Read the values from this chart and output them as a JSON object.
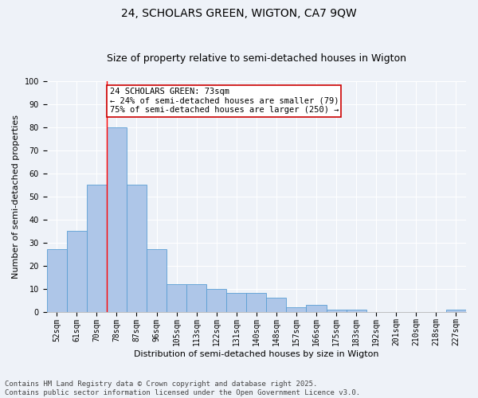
{
  "title_line1": "24, SCHOLARS GREEN, WIGTON, CA7 9QW",
  "title_line2": "Size of property relative to semi-detached houses in Wigton",
  "xlabel": "Distribution of semi-detached houses by size in Wigton",
  "ylabel": "Number of semi-detached properties",
  "footnote": "Contains HM Land Registry data © Crown copyright and database right 2025.\nContains public sector information licensed under the Open Government Licence v3.0.",
  "bin_labels": [
    "52sqm",
    "61sqm",
    "70sqm",
    "78sqm",
    "87sqm",
    "96sqm",
    "105sqm",
    "113sqm",
    "122sqm",
    "131sqm",
    "140sqm",
    "148sqm",
    "157sqm",
    "166sqm",
    "175sqm",
    "183sqm",
    "192sqm",
    "201sqm",
    "210sqm",
    "218sqm",
    "227sqm"
  ],
  "bar_values": [
    27,
    35,
    55,
    80,
    55,
    27,
    12,
    12,
    10,
    8,
    8,
    6,
    2,
    3,
    1,
    1,
    0,
    0,
    0,
    0,
    1
  ],
  "bar_color": "#aec6e8",
  "bar_edge_color": "#5a9fd4",
  "red_line_x": 2.5,
  "annotation_text": "24 SCHOLARS GREEN: 73sqm\n← 24% of semi-detached houses are smaller (79)\n75% of semi-detached houses are larger (250) →",
  "annotation_box_color": "#ffffff",
  "annotation_border_color": "#cc0000",
  "ylim": [
    0,
    100
  ],
  "yticks": [
    0,
    10,
    20,
    30,
    40,
    50,
    60,
    70,
    80,
    90,
    100
  ],
  "background_color": "#eef2f8",
  "grid_color": "#ffffff",
  "title_fontsize": 10,
  "subtitle_fontsize": 9,
  "axis_label_fontsize": 8,
  "tick_fontsize": 7,
  "annotation_fontsize": 7.5,
  "footnote_fontsize": 6.5
}
